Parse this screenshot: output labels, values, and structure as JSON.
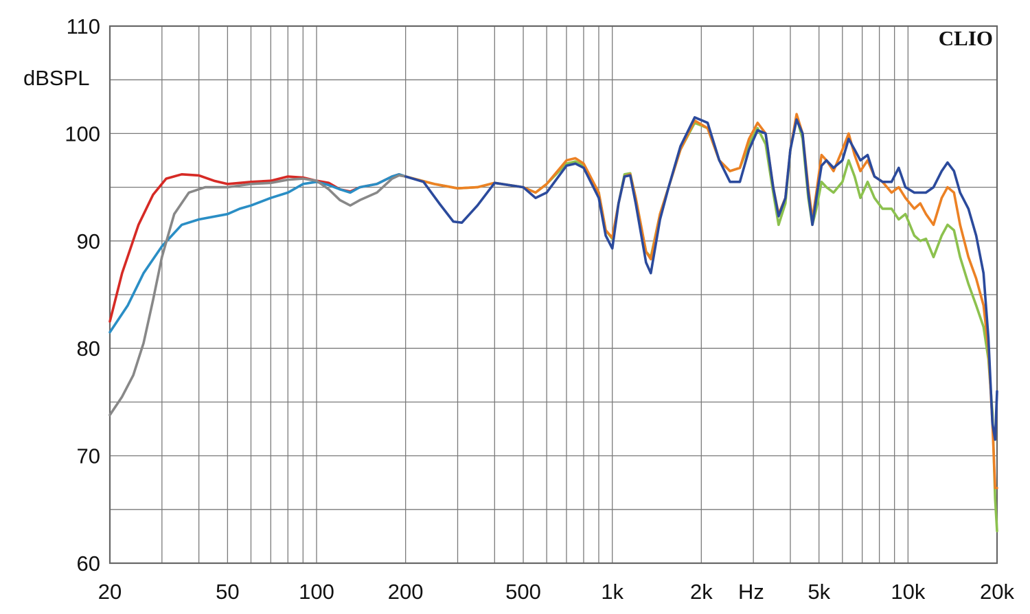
{
  "chart_data": {
    "type": "line",
    "title": "",
    "brand": "CLIO",
    "ylabel": "dBSPL",
    "xlabel": "Hz",
    "x_scale": "log",
    "xlim": [
      20,
      20000
    ],
    "ylim": [
      60,
      110
    ],
    "grid": true,
    "y_ticks": [
      {
        "value": 110,
        "label": "110"
      },
      {
        "value": 100,
        "label": "100"
      },
      {
        "value": 90,
        "label": "90"
      },
      {
        "value": 80,
        "label": "80"
      },
      {
        "value": 70,
        "label": "70"
      },
      {
        "value": 60,
        "label": "60"
      }
    ],
    "x_ticks": [
      {
        "value": 20,
        "label": "20"
      },
      {
        "value": 50,
        "label": "50"
      },
      {
        "value": 100,
        "label": "100"
      },
      {
        "value": 200,
        "label": "200"
      },
      {
        "value": 500,
        "label": "500"
      },
      {
        "value": 1000,
        "label": "1k"
      },
      {
        "value": 2000,
        "label": "2k"
      },
      {
        "value": 5000,
        "label": "5k"
      },
      {
        "value": 10000,
        "label": "10k"
      },
      {
        "value": 20000,
        "label": "20k"
      }
    ],
    "series": [
      {
        "color": "#d62a25",
        "points": [
          [
            20,
            82.5
          ],
          [
            22,
            87
          ],
          [
            25,
            91.5
          ],
          [
            28,
            94.3
          ],
          [
            31,
            95.8
          ],
          [
            35,
            96.2
          ],
          [
            40,
            96.1
          ],
          [
            45,
            95.6
          ],
          [
            50,
            95.3
          ],
          [
            60,
            95.5
          ],
          [
            70,
            95.6
          ],
          [
            80,
            96.0
          ],
          [
            90,
            95.9
          ],
          [
            100,
            95.6
          ],
          [
            110,
            95.4
          ],
          [
            120,
            94.8
          ],
          [
            130,
            94.6
          ],
          [
            140,
            95.0
          ],
          [
            160,
            95.3
          ],
          [
            180,
            96.0
          ],
          [
            190,
            96.2
          ],
          [
            200,
            96.0
          ]
        ]
      },
      {
        "color": "#2a8ec5",
        "points": [
          [
            20,
            81.5
          ],
          [
            23,
            84
          ],
          [
            26,
            87
          ],
          [
            30,
            89.5
          ],
          [
            35,
            91.5
          ],
          [
            40,
            92.0
          ],
          [
            50,
            92.5
          ],
          [
            55,
            93.0
          ],
          [
            60,
            93.3
          ],
          [
            70,
            94.0
          ],
          [
            80,
            94.5
          ],
          [
            90,
            95.3
          ],
          [
            100,
            95.5
          ],
          [
            110,
            95.2
          ],
          [
            120,
            94.8
          ],
          [
            130,
            94.5
          ],
          [
            140,
            95.0
          ],
          [
            160,
            95.3
          ],
          [
            180,
            96.0
          ],
          [
            190,
            96.2
          ],
          [
            200,
            96.0
          ]
        ]
      },
      {
        "color": "#888888",
        "points": [
          [
            20,
            73.8
          ],
          [
            22,
            75.5
          ],
          [
            24,
            77.5
          ],
          [
            26,
            80.5
          ],
          [
            28,
            84.5
          ],
          [
            30,
            88.5
          ],
          [
            33,
            92.5
          ],
          [
            37,
            94.5
          ],
          [
            42,
            95.0
          ],
          [
            50,
            95.0
          ],
          [
            60,
            95.3
          ],
          [
            70,
            95.4
          ],
          [
            80,
            95.7
          ],
          [
            90,
            95.8
          ],
          [
            100,
            95.6
          ],
          [
            110,
            94.8
          ],
          [
            120,
            93.8
          ],
          [
            130,
            93.3
          ],
          [
            140,
            93.8
          ],
          [
            160,
            94.5
          ],
          [
            180,
            95.8
          ],
          [
            190,
            96.1
          ],
          [
            200,
            96.0
          ]
        ]
      },
      {
        "color": "#8cc14e",
        "points": [
          [
            200,
            96.0
          ],
          [
            250,
            95.3
          ],
          [
            300,
            94.9
          ],
          [
            350,
            95.0
          ],
          [
            400,
            95.4
          ],
          [
            500,
            95.0
          ],
          [
            550,
            94.5
          ],
          [
            600,
            95.3
          ],
          [
            700,
            97.2
          ],
          [
            750,
            97.4
          ],
          [
            800,
            97.0
          ],
          [
            900,
            94.5
          ],
          [
            950,
            91.0
          ],
          [
            1000,
            90.2
          ],
          [
            1050,
            93.5
          ],
          [
            1100,
            96.2
          ],
          [
            1150,
            96.3
          ],
          [
            1200,
            94.0
          ],
          [
            1300,
            89.0
          ],
          [
            1350,
            88.5
          ],
          [
            1450,
            92.5
          ],
          [
            1550,
            95.0
          ],
          [
            1700,
            98.5
          ],
          [
            1900,
            101.0
          ],
          [
            2100,
            100.5
          ],
          [
            2300,
            97.5
          ],
          [
            2500,
            96.5
          ],
          [
            2700,
            96.8
          ],
          [
            2900,
            99.0
          ],
          [
            3100,
            100.5
          ],
          [
            3300,
            99.0
          ],
          [
            3500,
            94.5
          ],
          [
            3650,
            91.5
          ],
          [
            3850,
            93.5
          ],
          [
            4000,
            98.5
          ],
          [
            4200,
            101.5
          ],
          [
            4400,
            99.5
          ],
          [
            4600,
            94.0
          ],
          [
            4750,
            91.5
          ],
          [
            4900,
            93.0
          ],
          [
            5100,
            95.5
          ],
          [
            5300,
            95.0
          ],
          [
            5600,
            94.5
          ],
          [
            6000,
            95.5
          ],
          [
            6300,
            97.5
          ],
          [
            6600,
            96.0
          ],
          [
            6900,
            94.0
          ],
          [
            7300,
            95.5
          ],
          [
            7700,
            94.0
          ],
          [
            8200,
            93.0
          ],
          [
            8800,
            93.0
          ],
          [
            9300,
            92.0
          ],
          [
            9800,
            92.5
          ],
          [
            10500,
            90.5
          ],
          [
            11000,
            90.0
          ],
          [
            11500,
            90.2
          ],
          [
            12200,
            88.5
          ],
          [
            13000,
            90.5
          ],
          [
            13600,
            91.5
          ],
          [
            14300,
            91.0
          ],
          [
            15000,
            88.5
          ],
          [
            16000,
            86.0
          ],
          [
            17000,
            84.0
          ],
          [
            18000,
            82.0
          ],
          [
            18700,
            79.0
          ],
          [
            19300,
            74.0
          ],
          [
            19700,
            66.0
          ],
          [
            20000,
            63.0
          ]
        ]
      },
      {
        "color": "#ec8124",
        "points": [
          [
            200,
            96.0
          ],
          [
            250,
            95.3
          ],
          [
            300,
            94.9
          ],
          [
            350,
            95.0
          ],
          [
            400,
            95.4
          ],
          [
            500,
            95.0
          ],
          [
            550,
            94.5
          ],
          [
            600,
            95.3
          ],
          [
            700,
            97.5
          ],
          [
            750,
            97.7
          ],
          [
            800,
            97.2
          ],
          [
            900,
            94.5
          ],
          [
            950,
            91.0
          ],
          [
            1000,
            90.3
          ],
          [
            1050,
            93.5
          ],
          [
            1100,
            96.0
          ],
          [
            1150,
            96.2
          ],
          [
            1200,
            94.0
          ],
          [
            1300,
            89.0
          ],
          [
            1350,
            88.3
          ],
          [
            1450,
            92.5
          ],
          [
            1550,
            95.0
          ],
          [
            1700,
            98.5
          ],
          [
            1900,
            101.2
          ],
          [
            2100,
            100.5
          ],
          [
            2300,
            97.5
          ],
          [
            2500,
            96.5
          ],
          [
            2700,
            96.8
          ],
          [
            2900,
            99.5
          ],
          [
            3100,
            101.0
          ],
          [
            3300,
            100.0
          ],
          [
            3500,
            95.0
          ],
          [
            3650,
            92.5
          ],
          [
            3850,
            94.0
          ],
          [
            4000,
            98.5
          ],
          [
            4200,
            101.8
          ],
          [
            4400,
            100.0
          ],
          [
            4600,
            95.0
          ],
          [
            4750,
            92.0
          ],
          [
            4900,
            94.5
          ],
          [
            5100,
            98.0
          ],
          [
            5300,
            97.5
          ],
          [
            5600,
            96.5
          ],
          [
            6000,
            98.5
          ],
          [
            6300,
            100.0
          ],
          [
            6600,
            98.0
          ],
          [
            6900,
            96.5
          ],
          [
            7300,
            97.5
          ],
          [
            7700,
            96.0
          ],
          [
            8200,
            95.5
          ],
          [
            8800,
            94.5
          ],
          [
            9300,
            95.0
          ],
          [
            9800,
            94.0
          ],
          [
            10500,
            93.0
          ],
          [
            11000,
            93.5
          ],
          [
            11500,
            92.5
          ],
          [
            12200,
            91.5
          ],
          [
            13000,
            94.0
          ],
          [
            13600,
            95.0
          ],
          [
            14300,
            94.5
          ],
          [
            15000,
            91.5
          ],
          [
            16000,
            88.5
          ],
          [
            17000,
            86.5
          ],
          [
            18000,
            84.0
          ],
          [
            18700,
            80.0
          ],
          [
            19300,
            73.0
          ],
          [
            19700,
            67.0
          ],
          [
            20000,
            67.0
          ]
        ]
      },
      {
        "color": "#2b4a9c",
        "points": [
          [
            200,
            96.0
          ],
          [
            230,
            95.5
          ],
          [
            260,
            93.5
          ],
          [
            290,
            91.8
          ],
          [
            310,
            91.7
          ],
          [
            350,
            93.3
          ],
          [
            400,
            95.4
          ],
          [
            500,
            95.0
          ],
          [
            550,
            94.0
          ],
          [
            600,
            94.5
          ],
          [
            700,
            97.0
          ],
          [
            750,
            97.2
          ],
          [
            800,
            96.8
          ],
          [
            900,
            94.0
          ],
          [
            950,
            90.5
          ],
          [
            1000,
            89.3
          ],
          [
            1050,
            93.5
          ],
          [
            1100,
            96.0
          ],
          [
            1150,
            96.1
          ],
          [
            1200,
            93.5
          ],
          [
            1300,
            88.0
          ],
          [
            1350,
            87.0
          ],
          [
            1450,
            92.0
          ],
          [
            1550,
            95.0
          ],
          [
            1700,
            98.8
          ],
          [
            1900,
            101.5
          ],
          [
            2100,
            101.0
          ],
          [
            2300,
            97.5
          ],
          [
            2500,
            95.5
          ],
          [
            2700,
            95.5
          ],
          [
            2900,
            98.5
          ],
          [
            3100,
            100.3
          ],
          [
            3300,
            100.0
          ],
          [
            3500,
            95.0
          ],
          [
            3650,
            92.3
          ],
          [
            3850,
            94.0
          ],
          [
            4000,
            98.5
          ],
          [
            4200,
            101.3
          ],
          [
            4400,
            100.0
          ],
          [
            4600,
            94.5
          ],
          [
            4750,
            91.5
          ],
          [
            4900,
            94.0
          ],
          [
            5100,
            97.0
          ],
          [
            5300,
            97.5
          ],
          [
            5600,
            96.8
          ],
          [
            6000,
            97.5
          ],
          [
            6300,
            99.5
          ],
          [
            6600,
            98.5
          ],
          [
            6900,
            97.5
          ],
          [
            7300,
            98.0
          ],
          [
            7700,
            96.0
          ],
          [
            8200,
            95.5
          ],
          [
            8800,
            95.5
          ],
          [
            9300,
            96.8
          ],
          [
            9800,
            95.0
          ],
          [
            10500,
            94.5
          ],
          [
            11000,
            94.5
          ],
          [
            11500,
            94.5
          ],
          [
            12200,
            95.0
          ],
          [
            13000,
            96.5
          ],
          [
            13600,
            97.3
          ],
          [
            14300,
            96.5
          ],
          [
            15000,
            94.5
          ],
          [
            16000,
            93.0
          ],
          [
            17000,
            90.5
          ],
          [
            18000,
            87.0
          ],
          [
            18700,
            81.0
          ],
          [
            19300,
            73.0
          ],
          [
            19700,
            71.5
          ],
          [
            20000,
            76.0
          ]
        ]
      }
    ]
  }
}
